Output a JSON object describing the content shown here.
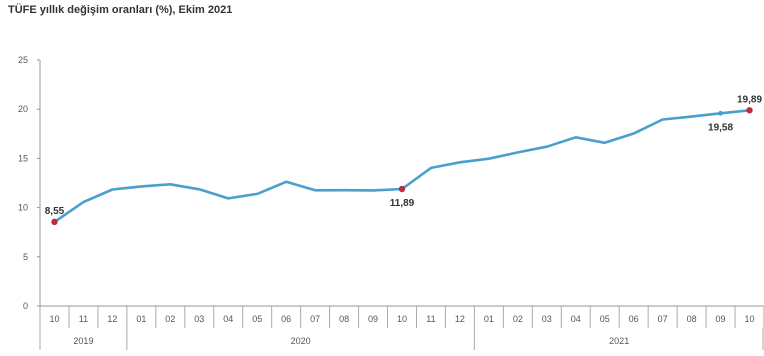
{
  "chart_data": {
    "type": "line",
    "title": "TÜFE yıllık değişim oranları (%), Ekim 2021",
    "xlabel": "",
    "ylabel": "",
    "ylim": [
      0,
      25
    ],
    "yticks": [
      0,
      5,
      10,
      15,
      20,
      25
    ],
    "grid": false,
    "legend": "none",
    "month_labels": [
      "10",
      "11",
      "12",
      "01",
      "02",
      "03",
      "04",
      "05",
      "06",
      "07",
      "08",
      "09",
      "10",
      "11",
      "12",
      "01",
      "02",
      "03",
      "04",
      "05",
      "06",
      "07",
      "08",
      "09",
      "10"
    ],
    "year_groups": [
      {
        "label": "2019",
        "start": 0,
        "end": 2
      },
      {
        "label": "2020",
        "start": 3,
        "end": 14
      },
      {
        "label": "2021",
        "start": 15,
        "end": 24
      }
    ],
    "series": [
      {
        "color": "#4a9fcf",
        "values": [
          8.55,
          10.56,
          11.84,
          12.15,
          12.37,
          11.86,
          10.94,
          11.39,
          12.62,
          11.76,
          11.77,
          11.75,
          11.89,
          14.03,
          14.6,
          14.97,
          15.61,
          16.19,
          17.14,
          16.59,
          17.53,
          18.95,
          19.25,
          19.58,
          19.89
        ]
      }
    ],
    "highlight_color": "#b5313b",
    "annotations": [
      {
        "index": 0,
        "text": "8,55",
        "position": "above"
      },
      {
        "index": 12,
        "text": "11,89",
        "position": "below"
      },
      {
        "index": 23,
        "text": "19,58",
        "position": "below"
      },
      {
        "index": 24,
        "text": "19,89",
        "position": "above"
      }
    ]
  }
}
